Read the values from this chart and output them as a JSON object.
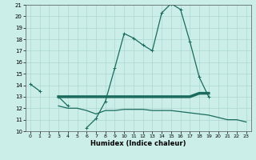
{
  "xlabel": "Humidex (Indice chaleur)",
  "x": [
    0,
    1,
    2,
    3,
    4,
    5,
    6,
    7,
    8,
    9,
    10,
    11,
    12,
    13,
    14,
    15,
    16,
    17,
    18,
    19,
    20,
    21,
    22,
    23
  ],
  "line1": [
    14.1,
    13.5,
    null,
    13.0,
    12.2,
    null,
    10.3,
    11.1,
    12.6,
    15.5,
    18.5,
    18.1,
    17.5,
    17.0,
    20.3,
    21.1,
    20.6,
    17.8,
    14.7,
    13.0,
    null,
    null,
    null,
    null
  ],
  "line2": [
    null,
    null,
    null,
    13.0,
    13.0,
    13.0,
    13.0,
    13.0,
    13.0,
    13.0,
    13.0,
    13.0,
    13.0,
    13.0,
    13.0,
    13.0,
    13.0,
    13.0,
    13.3,
    13.3,
    null,
    null,
    null,
    null
  ],
  "line3": [
    null,
    null,
    null,
    12.2,
    12.0,
    12.0,
    11.8,
    11.5,
    11.8,
    11.8,
    11.9,
    11.9,
    11.9,
    11.8,
    11.8,
    11.8,
    11.7,
    11.6,
    11.5,
    11.4,
    11.2,
    11.0,
    11.0,
    10.8
  ],
  "ylim": [
    10,
    21
  ],
  "xlim": [
    -0.5,
    23.5
  ],
  "yticks": [
    10,
    11,
    12,
    13,
    14,
    15,
    16,
    17,
    18,
    19,
    20,
    21
  ],
  "xticks": [
    0,
    1,
    2,
    3,
    4,
    5,
    6,
    7,
    8,
    9,
    10,
    11,
    12,
    13,
    14,
    15,
    16,
    17,
    18,
    19,
    20,
    21,
    22,
    23
  ],
  "line_color": "#1a6b5e",
  "bg_color": "#cceee8",
  "grid_color": "#aad8d0"
}
